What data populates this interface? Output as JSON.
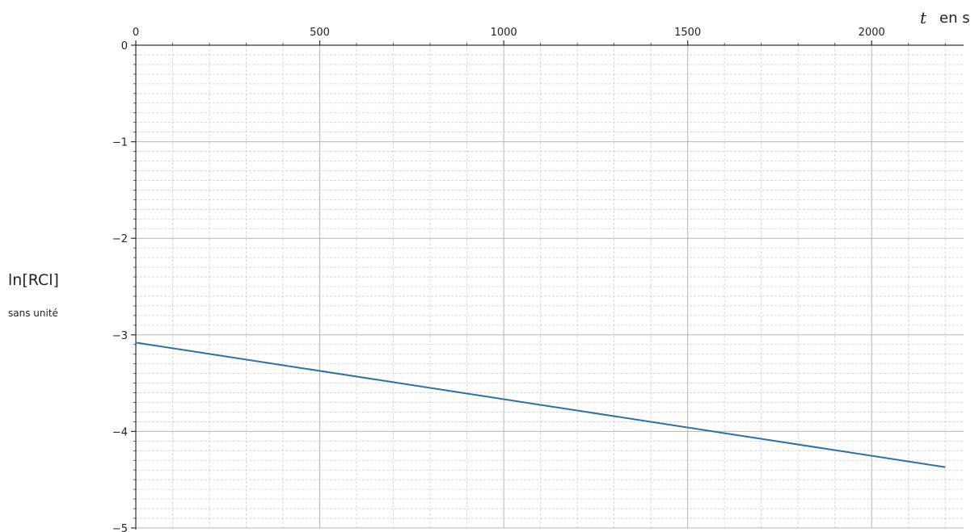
{
  "chart_data": {
    "type": "line",
    "x_label": {
      "variable": "t",
      "unit": "en s"
    },
    "y_label": {
      "main": "ln[RCl]",
      "unit": "sans unité"
    },
    "xlim": [
      0,
      2250
    ],
    "ylim": [
      -5,
      0
    ],
    "x_ticks": [
      0,
      500,
      1000,
      1500,
      2000
    ],
    "y_ticks": [
      0,
      -1,
      -2,
      -3,
      -4,
      -5
    ],
    "x_tick_labels": [
      "0",
      "500",
      "1000",
      "1500",
      "2000"
    ],
    "y_tick_labels": [
      "0",
      "−1",
      "−2",
      "−3",
      "−4",
      "−5"
    ],
    "x_minor_step": 100,
    "y_minor_step": 0.1,
    "x_axis_position": "top",
    "grid": true,
    "series": [
      {
        "x": [
          0,
          2200
        ],
        "y": [
          -3.08,
          -4.37
        ],
        "color": "#2f6fa7"
      }
    ]
  }
}
